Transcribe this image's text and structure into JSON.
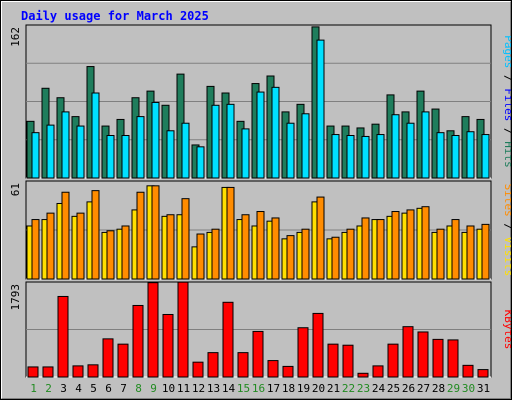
{
  "title": "Daily usage for March 2025",
  "colors": {
    "title": "#0000ff",
    "hits": "#1f7d5c",
    "files": "#00e0ff",
    "pages": "#00c0ff",
    "visits": "#ffe000",
    "sites": "#ff8c00",
    "kbytes": "#ff0000",
    "weekday_label": "#000000",
    "weekend_label": "#228b22",
    "plot_bg": "#c0c0c0",
    "gridline": "#808080"
  },
  "chart_data": [
    {
      "type": "bar",
      "panel": "hits-files-pages",
      "ylim": [
        0,
        162
      ],
      "y_max_label": "162",
      "right_label": {
        "hits": "Hits",
        "sep1": " / ",
        "files": "Files",
        "sep2": " / ",
        "pages": "Pages"
      },
      "x": [
        1,
        2,
        3,
        4,
        5,
        6,
        7,
        8,
        9,
        10,
        11,
        12,
        13,
        14,
        15,
        16,
        17,
        18,
        19,
        20,
        21,
        22,
        23,
        24,
        25,
        26,
        27,
        28,
        29,
        30,
        31
      ],
      "series": [
        {
          "name": "Hits",
          "values": [
            60,
            95,
            85,
            65,
            118,
            55,
            62,
            85,
            92,
            77,
            110,
            35,
            97,
            90,
            60,
            100,
            108,
            70,
            78,
            160,
            55,
            55,
            53,
            57,
            88,
            70,
            92,
            73,
            50,
            65,
            62
          ]
        },
        {
          "name": "Files",
          "values": [
            48,
            56,
            70,
            55,
            90,
            45,
            45,
            65,
            80,
            50,
            58,
            33,
            77,
            78,
            52,
            91,
            96,
            58,
            68,
            146,
            46,
            45,
            44,
            46,
            67,
            58,
            70,
            48,
            45,
            49,
            46
          ]
        },
        {
          "name": "Pages",
          "values": [
            48,
            56,
            70,
            55,
            90,
            45,
            45,
            65,
            80,
            50,
            58,
            33,
            77,
            78,
            52,
            91,
            96,
            58,
            68,
            146,
            46,
            45,
            44,
            46,
            67,
            58,
            70,
            48,
            45,
            49,
            46
          ]
        }
      ]
    },
    {
      "type": "bar",
      "panel": "visits-sites",
      "ylim": [
        0,
        61
      ],
      "y_max_label": "61",
      "right_label": {
        "visits": "Visits",
        "sep": " / ",
        "sites": "Sites"
      },
      "x": [
        1,
        2,
        3,
        4,
        5,
        6,
        7,
        8,
        9,
        10,
        11,
        12,
        13,
        14,
        15,
        16,
        17,
        18,
        19,
        20,
        21,
        22,
        23,
        24,
        25,
        26,
        27,
        28,
        29,
        30,
        31
      ],
      "series": [
        {
          "name": "Visits",
          "values": [
            33,
            37,
            47,
            39,
            48,
            29,
            31,
            43,
            58,
            39,
            40,
            20,
            29,
            57,
            37,
            33,
            36,
            25,
            29,
            48,
            25,
            29,
            33,
            37,
            39,
            41,
            44,
            29,
            33,
            29,
            31
          ]
        },
        {
          "name": "Sites",
          "values": [
            37,
            41,
            54,
            41,
            55,
            30,
            33,
            54,
            58,
            40,
            50,
            28,
            31,
            57,
            40,
            42,
            38,
            27,
            31,
            51,
            26,
            31,
            38,
            37,
            42,
            43,
            45,
            31,
            37,
            33,
            34
          ]
        }
      ]
    },
    {
      "type": "bar",
      "panel": "kbytes",
      "ylim": [
        0,
        1793
      ],
      "y_max_label": "1793",
      "right_label": {
        "kbytes": "KBytes"
      },
      "x": [
        1,
        2,
        3,
        4,
        5,
        6,
        7,
        8,
        9,
        10,
        11,
        12,
        13,
        14,
        15,
        16,
        17,
        18,
        19,
        20,
        21,
        22,
        23,
        24,
        25,
        26,
        27,
        28,
        29,
        30,
        31
      ],
      "series": [
        {
          "name": "KBytes",
          "values": [
            190,
            190,
            1520,
            210,
            230,
            720,
            620,
            1350,
            1780,
            1180,
            1790,
            280,
            460,
            1410,
            460,
            860,
            310,
            200,
            930,
            1200,
            620,
            600,
            70,
            210,
            620,
            950,
            850,
            710,
            700,
            220,
            140
          ]
        }
      ]
    }
  ],
  "x_labels": [
    "1",
    "2",
    "3",
    "4",
    "5",
    "6",
    "7",
    "8",
    "9",
    "10",
    "11",
    "12",
    "13",
    "14",
    "15",
    "16",
    "17",
    "18",
    "19",
    "20",
    "21",
    "22",
    "23",
    "24",
    "25",
    "26",
    "27",
    "28",
    "29",
    "30",
    "31"
  ],
  "weekend_days": [
    1,
    2,
    8,
    9,
    15,
    16,
    22,
    23,
    29,
    30
  ]
}
